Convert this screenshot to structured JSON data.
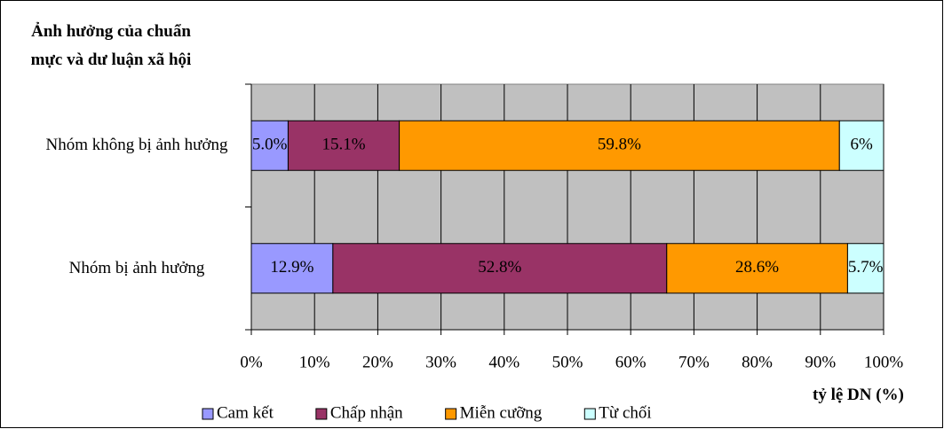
{
  "chart_data": {
    "type": "bar",
    "orientation": "horizontal",
    "stacked": "percent",
    "title": "Ảnh hưởng của chuẩn mực và dư luận xã hội",
    "x_label": "tỷ lệ DN (%)",
    "categories": [
      "Nhóm không bị ảnh hưởng",
      "Nhóm bị ảnh hưởng"
    ],
    "series": [
      {
        "name": "Cam kết",
        "color": "#9999ff",
        "values": [
          5.0,
          12.9
        ],
        "value_labels": [
          "5.0%",
          "12.9%"
        ]
      },
      {
        "name": "Chấp nhận",
        "color": "#993366",
        "values": [
          15.1,
          52.8
        ],
        "value_labels": [
          "15.1%",
          "52.8%"
        ]
      },
      {
        "name": "Miễn cưỡng",
        "color": "#ff9900",
        "values": [
          59.8,
          28.6
        ],
        "value_labels": [
          "59.8%",
          "28.6%"
        ]
      },
      {
        "name": "Từ chối",
        "color": "#ccffff",
        "values": [
          6,
          5.7
        ],
        "value_labels": [
          "6%",
          "5.7%"
        ]
      }
    ],
    "xlim": [
      0,
      100
    ],
    "xticks": [
      {
        "value": 0,
        "label": "0%"
      },
      {
        "value": 10,
        "label": "10%"
      },
      {
        "value": 20,
        "label": "20%"
      },
      {
        "value": 30,
        "label": "30%"
      },
      {
        "value": 40,
        "label": "40%"
      },
      {
        "value": 50,
        "label": "50%"
      },
      {
        "value": 60,
        "label": "60%"
      },
      {
        "value": 70,
        "label": "70%"
      },
      {
        "value": 80,
        "label": "80%"
      },
      {
        "value": 90,
        "label": "90%"
      },
      {
        "value": 100,
        "label": "100%"
      }
    ],
    "grid": true,
    "plot_background": "#c0c0c0",
    "legend": "bottom"
  }
}
